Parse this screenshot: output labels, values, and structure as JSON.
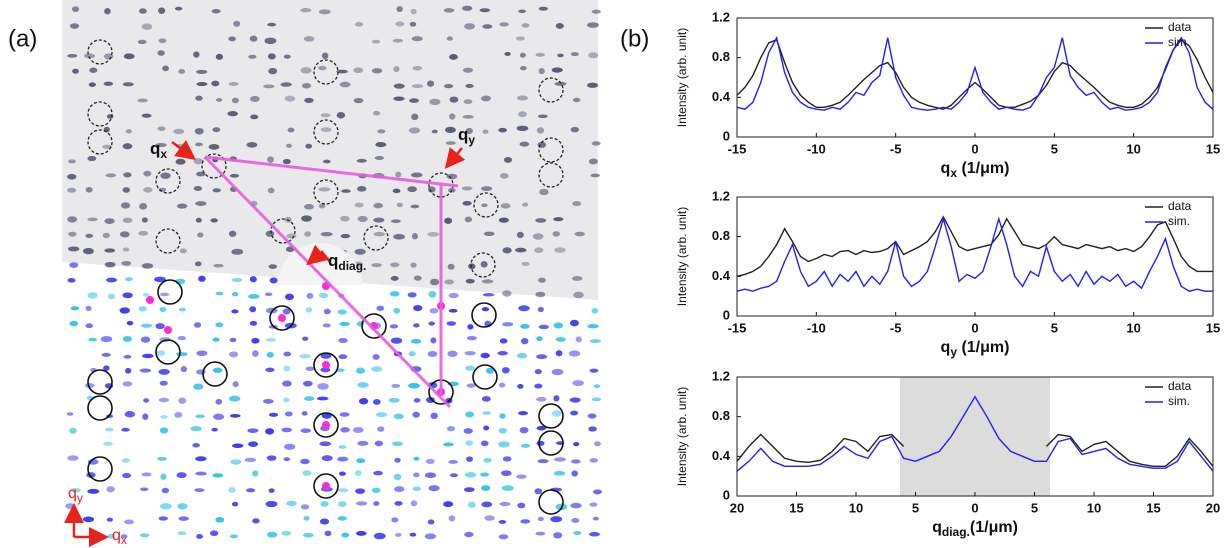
{
  "panel_labels": [
    "(a)",
    "(b)"
  ],
  "panel_a": {
    "labels": [
      {
        "main": "q",
        "sub": "x"
      },
      {
        "main": "q",
        "sub": "y"
      },
      {
        "main": "q",
        "sub": "diag."
      }
    ],
    "axes": [
      {
        "main": "q",
        "sub": "y"
      },
      {
        "main": "q",
        "sub": "x"
      }
    ]
  },
  "chart_data": [
    {
      "type": "line",
      "y_label": "Intensity (arb. unit)",
      "x_label": {
        "main": "q",
        "sub": "x",
        "unit": " (1/μm)"
      },
      "xlim": [
        -15,
        15
      ],
      "xticks": [
        -15,
        -10,
        -5,
        0,
        5,
        10,
        15
      ],
      "ylim": [
        0,
        1.2
      ],
      "yticks": [
        0,
        0.4,
        0.8,
        1.2
      ],
      "legend": "upper right",
      "x": [
        -15,
        -14.5,
        -14,
        -13.5,
        -13,
        -12.5,
        -12,
        -11.5,
        -11,
        -10.5,
        -10,
        -9.5,
        -9,
        -8.5,
        -8,
        -7.5,
        -7,
        -6.5,
        -6,
        -5.5,
        -5,
        -4.5,
        -4,
        -3.5,
        -3,
        -2.5,
        -2,
        -1.5,
        -1,
        -0.5,
        0,
        0.5,
        1,
        1.5,
        2,
        2.5,
        3,
        3.5,
        4,
        4.5,
        5,
        5.5,
        6,
        6.5,
        7,
        7.5,
        8,
        8.5,
        9,
        9.5,
        10,
        10.5,
        11,
        11.5,
        12,
        12.5,
        13,
        13.5,
        14,
        14.5,
        15
      ],
      "series": [
        {
          "name": "data",
          "color": "#222222",
          "values": [
            0.42,
            0.5,
            0.62,
            0.8,
            0.95,
            0.98,
            0.75,
            0.55,
            0.42,
            0.35,
            0.3,
            0.3,
            0.32,
            0.35,
            0.42,
            0.5,
            0.58,
            0.65,
            0.72,
            0.75,
            0.65,
            0.5,
            0.4,
            0.35,
            0.32,
            0.3,
            0.28,
            0.32,
            0.4,
            0.48,
            0.55,
            0.48,
            0.4,
            0.32,
            0.3,
            0.3,
            0.33,
            0.36,
            0.42,
            0.52,
            0.66,
            0.75,
            0.72,
            0.64,
            0.57,
            0.5,
            0.42,
            0.35,
            0.32,
            0.3,
            0.3,
            0.33,
            0.4,
            0.5,
            0.68,
            0.88,
            0.98,
            0.92,
            0.78,
            0.6,
            0.45
          ]
        },
        {
          "name": "sim.",
          "color": "#1f1fff",
          "values": [
            0.3,
            0.28,
            0.35,
            0.55,
            0.85,
            1.0,
            0.65,
            0.45,
            0.35,
            0.3,
            0.28,
            0.27,
            0.3,
            0.28,
            0.35,
            0.45,
            0.42,
            0.55,
            0.62,
            1.0,
            0.6,
            0.42,
            0.3,
            0.28,
            0.27,
            0.28,
            0.3,
            0.28,
            0.35,
            0.45,
            0.7,
            0.45,
            0.35,
            0.28,
            0.3,
            0.28,
            0.27,
            0.3,
            0.42,
            0.6,
            0.7,
            1.0,
            0.62,
            0.5,
            0.42,
            0.45,
            0.35,
            0.28,
            0.3,
            0.27,
            0.28,
            0.3,
            0.35,
            0.45,
            0.7,
            0.88,
            1.0,
            0.85,
            0.5,
            0.35,
            0.28
          ]
        }
      ]
    },
    {
      "type": "line",
      "y_label": "Intensity (arb. unit)",
      "x_label": {
        "main": "q",
        "sub": "y",
        "unit": " (1/μm)"
      },
      "xlim": [
        -15,
        15
      ],
      "xticks": [
        -15,
        -10,
        -5,
        0,
        5,
        10,
        15
      ],
      "ylim": [
        0,
        1.2
      ],
      "yticks": [
        0,
        0.4,
        0.8,
        1.2
      ],
      "legend": "upper right",
      "x": [
        -15,
        -14.5,
        -14,
        -13.5,
        -13,
        -12.5,
        -12,
        -11.5,
        -11,
        -10.5,
        -10,
        -9.5,
        -9,
        -8.5,
        -8,
        -7.5,
        -7,
        -6.5,
        -6,
        -5.5,
        -5,
        -4.5,
        -4,
        -3.5,
        -3,
        -2.5,
        -2,
        -1.5,
        -1,
        -0.5,
        0,
        0.5,
        1,
        1.5,
        2,
        2.5,
        3,
        3.5,
        4,
        4.5,
        5,
        5.5,
        6,
        6.5,
        7,
        7.5,
        8,
        8.5,
        9,
        9.5,
        10,
        10.5,
        11,
        11.5,
        12,
        12.5,
        13,
        13.5,
        14,
        14.5,
        15
      ],
      "series": [
        {
          "name": "data",
          "color": "#222222",
          "values": [
            0.4,
            0.42,
            0.45,
            0.5,
            0.6,
            0.72,
            0.88,
            0.75,
            0.6,
            0.55,
            0.58,
            0.62,
            0.6,
            0.65,
            0.66,
            0.62,
            0.66,
            0.64,
            0.65,
            0.68,
            0.75,
            0.62,
            0.66,
            0.7,
            0.75,
            0.85,
            1.0,
            0.85,
            0.7,
            0.66,
            0.68,
            0.7,
            0.72,
            0.82,
            0.98,
            0.85,
            0.72,
            0.7,
            0.68,
            0.72,
            0.8,
            0.72,
            0.7,
            0.68,
            0.72,
            0.7,
            0.68,
            0.7,
            0.66,
            0.68,
            0.65,
            0.7,
            0.8,
            0.92,
            0.95,
            0.78,
            0.6,
            0.5,
            0.45,
            0.45,
            0.45
          ]
        },
        {
          "name": "sim.",
          "color": "#1f1fff",
          "values": [
            0.25,
            0.27,
            0.25,
            0.28,
            0.3,
            0.35,
            0.55,
            0.72,
            0.45,
            0.3,
            0.35,
            0.45,
            0.3,
            0.42,
            0.35,
            0.45,
            0.3,
            0.4,
            0.32,
            0.45,
            0.75,
            0.4,
            0.3,
            0.35,
            0.45,
            0.7,
            0.98,
            0.7,
            0.35,
            0.42,
            0.38,
            0.45,
            0.7,
            0.98,
            0.72,
            0.4,
            0.3,
            0.45,
            0.4,
            0.7,
            0.45,
            0.35,
            0.42,
            0.3,
            0.45,
            0.32,
            0.4,
            0.35,
            0.42,
            0.3,
            0.35,
            0.28,
            0.45,
            0.6,
            0.78,
            0.5,
            0.3,
            0.25,
            0.27,
            0.25,
            0.25
          ]
        }
      ]
    },
    {
      "type": "line",
      "y_label": "Intensity (arb. unit)",
      "x_label": {
        "main": "q",
        "sub": "diag.",
        "unit": "(1/μm)"
      },
      "xlim": [
        -20,
        20
      ],
      "xticks": [
        {
          "value": -20,
          "label": "20"
        },
        {
          "value": -15,
          "label": "15"
        },
        {
          "value": -10,
          "label": "10"
        },
        {
          "value": -5,
          "label": "5"
        },
        0,
        5,
        10,
        15,
        20
      ],
      "ylim": [
        0,
        1.2
      ],
      "yticks": [
        0,
        0.4,
        0.8,
        1.2
      ],
      "legend": "upper right",
      "shaded_range": [
        -6.3,
        6.3
      ],
      "shade_color": "#dcdcdc",
      "x": [
        -20,
        -19,
        -18,
        -17,
        -16,
        -15,
        -14,
        -13,
        -12,
        -11,
        -10,
        -9,
        -8,
        -7,
        -6,
        -5,
        -4,
        -3,
        -2,
        -1,
        0,
        1,
        2,
        3,
        4,
        5,
        6,
        7,
        8,
        9,
        10,
        11,
        12,
        13,
        14,
        15,
        16,
        17,
        18,
        19,
        20
      ],
      "series": [
        {
          "name": "data",
          "color": "#222222",
          "values": [
            0.35,
            0.5,
            0.62,
            0.5,
            0.38,
            0.35,
            0.34,
            0.36,
            0.45,
            0.58,
            0.55,
            0.45,
            0.6,
            0.62,
            0.5,
            null,
            null,
            null,
            null,
            null,
            null,
            null,
            null,
            null,
            null,
            null,
            0.5,
            0.62,
            0.6,
            0.45,
            0.52,
            0.55,
            0.45,
            0.35,
            0.32,
            0.3,
            0.3,
            0.4,
            0.58,
            0.45,
            0.3
          ]
        },
        {
          "name": "sim.",
          "color": "#1f1fff",
          "values": [
            0.25,
            0.35,
            0.48,
            0.35,
            0.3,
            0.3,
            0.3,
            0.32,
            0.4,
            0.5,
            0.42,
            0.38,
            0.55,
            0.6,
            0.38,
            0.35,
            0.4,
            0.45,
            0.6,
            0.8,
            1.0,
            0.8,
            0.58,
            0.45,
            0.4,
            0.35,
            0.35,
            0.55,
            0.58,
            0.42,
            0.45,
            0.48,
            0.38,
            0.32,
            0.3,
            0.28,
            0.28,
            0.35,
            0.55,
            0.4,
            0.25
          ]
        }
      ]
    }
  ]
}
